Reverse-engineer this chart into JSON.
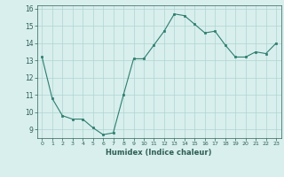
{
  "x": [
    0,
    1,
    2,
    3,
    4,
    5,
    6,
    7,
    8,
    9,
    10,
    11,
    12,
    13,
    14,
    15,
    16,
    17,
    18,
    19,
    20,
    21,
    22,
    23
  ],
  "y": [
    13.2,
    10.8,
    9.8,
    9.6,
    9.6,
    9.1,
    8.7,
    8.8,
    11.0,
    13.1,
    13.1,
    13.9,
    14.7,
    15.7,
    15.6,
    15.1,
    14.6,
    14.7,
    13.9,
    13.2,
    13.2,
    13.5,
    13.4,
    14.0
  ],
  "xlabel": "Humidex (Indice chaleur)",
  "xlim": [
    -0.5,
    23.5
  ],
  "ylim": [
    8.5,
    16.2
  ],
  "yticks": [
    9,
    10,
    11,
    12,
    13,
    14,
    15,
    16
  ],
  "xticks": [
    0,
    1,
    2,
    3,
    4,
    5,
    6,
    7,
    8,
    9,
    10,
    11,
    12,
    13,
    14,
    15,
    16,
    17,
    18,
    19,
    20,
    21,
    22,
    23
  ],
  "line_color": "#2e7d6e",
  "marker_color": "#2e7d6e",
  "bg_color": "#d8efee",
  "grid_color": "#afd4d0",
  "tick_label_color": "#2e5e54",
  "xlabel_color": "#2e5e54"
}
